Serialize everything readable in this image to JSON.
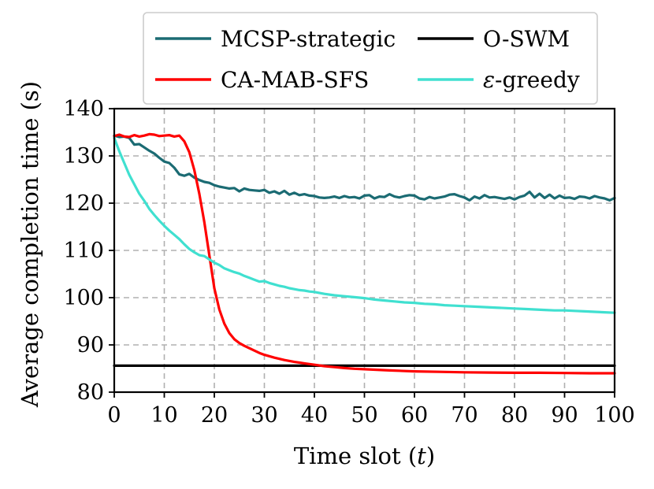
{
  "chart_data": {
    "type": "line",
    "xlabel": "Time slot (t)",
    "xlabel_main": "Time slot (",
    "xlabel_var": "t",
    "xlabel_end": ")",
    "ylabel": "Average completion time (s)",
    "xlim": [
      0,
      100
    ],
    "ylim": [
      80,
      140
    ],
    "xticks": [
      0,
      10,
      20,
      30,
      40,
      50,
      60,
      70,
      80,
      90,
      100
    ],
    "yticks": [
      80,
      90,
      100,
      110,
      120,
      130,
      140
    ],
    "grid": true,
    "legend_position": "top",
    "series": [
      {
        "name": "MCSP-strategic",
        "color": "#1b6b73",
        "x": [
          0,
          1,
          2,
          3,
          4,
          5,
          6,
          7,
          8,
          9,
          10,
          11,
          12,
          13,
          14,
          15,
          16,
          17,
          18,
          19,
          20,
          21,
          22,
          23,
          24,
          25,
          26,
          27,
          28,
          29,
          30,
          31,
          32,
          33,
          34,
          35,
          36,
          37,
          38,
          39,
          40,
          41,
          42,
          43,
          44,
          45,
          46,
          47,
          48,
          49,
          50,
          51,
          52,
          53,
          54,
          55,
          56,
          57,
          58,
          59,
          60,
          61,
          62,
          63,
          64,
          65,
          66,
          67,
          68,
          69,
          70,
          71,
          72,
          73,
          74,
          75,
          76,
          77,
          78,
          79,
          80,
          81,
          82,
          83,
          84,
          85,
          86,
          87,
          88,
          89,
          90,
          91,
          92,
          93,
          94,
          95,
          96,
          97,
          98,
          99,
          100
        ],
        "values": [
          134.3,
          134.0,
          134.1,
          133.8,
          132.4,
          132.5,
          131.8,
          131.1,
          130.5,
          129.6,
          128.8,
          128.5,
          127.5,
          126.1,
          125.8,
          126.2,
          125.4,
          124.9,
          124.5,
          124.3,
          123.8,
          123.5,
          123.3,
          123.1,
          123.2,
          122.5,
          123.1,
          122.8,
          122.7,
          122.6,
          122.8,
          122.2,
          122.5,
          122.0,
          122.6,
          121.8,
          122.2,
          121.7,
          121.9,
          121.6,
          121.5,
          121.2,
          121.1,
          121.2,
          121.4,
          121.1,
          121.5,
          121.2,
          121.3,
          121.0,
          121.6,
          121.7,
          121.0,
          121.4,
          121.3,
          121.9,
          121.4,
          121.2,
          121.5,
          121.7,
          121.6,
          121.0,
          120.8,
          121.3,
          121.0,
          121.2,
          121.4,
          121.8,
          121.9,
          121.5,
          121.2,
          120.6,
          121.4,
          121.0,
          121.7,
          121.2,
          121.3,
          121.1,
          120.9,
          121.2,
          120.8,
          121.3,
          121.6,
          122.4,
          121.2,
          122.0,
          121.1,
          121.8,
          121.0,
          121.6,
          121.1,
          121.2,
          120.9,
          121.4,
          121.3,
          121.0,
          121.5,
          121.2,
          121.0,
          120.6,
          121.1
        ]
      },
      {
        "name": "O-SWM",
        "color": "#000000",
        "x": [
          0,
          100
        ],
        "values": [
          85.6,
          85.6
        ]
      },
      {
        "name": "CA-MAB-SFS",
        "color": "#ff0000",
        "x": [
          0,
          1,
          2,
          3,
          4,
          5,
          6,
          7,
          8,
          9,
          10,
          11,
          12,
          13,
          14,
          15,
          16,
          17,
          18,
          19,
          20,
          21,
          22,
          23,
          24,
          25,
          26,
          27,
          28,
          29,
          30,
          32,
          34,
          36,
          38,
          40,
          42,
          44,
          46,
          48,
          50,
          55,
          60,
          65,
          70,
          75,
          80,
          85,
          90,
          95,
          100
        ],
        "values": [
          134.2,
          134.5,
          134.1,
          134.0,
          134.4,
          134.1,
          134.3,
          134.6,
          134.5,
          134.2,
          134.3,
          134.4,
          134.1,
          134.3,
          133.1,
          130.8,
          127.0,
          122.0,
          116.0,
          109.0,
          102.0,
          97.5,
          94.5,
          92.5,
          91.2,
          90.4,
          89.8,
          89.3,
          88.8,
          88.3,
          87.9,
          87.3,
          86.8,
          86.4,
          86.1,
          85.8,
          85.5,
          85.3,
          85.1,
          84.95,
          84.85,
          84.6,
          84.4,
          84.3,
          84.2,
          84.15,
          84.1,
          84.1,
          84.05,
          84.0,
          84.0
        ]
      },
      {
        "name": "ε-greedy",
        "name_symbol": "ε",
        "name_rest": "-greedy",
        "color": "#40e0d0",
        "x": [
          0,
          1,
          2,
          3,
          4,
          5,
          6,
          7,
          8,
          9,
          10,
          11,
          12,
          13,
          14,
          15,
          16,
          17,
          18,
          19,
          20,
          21,
          22,
          23,
          24,
          25,
          26,
          27,
          28,
          29,
          30,
          31,
          32,
          33,
          34,
          35,
          36,
          37,
          38,
          39,
          40,
          42,
          44,
          46,
          48,
          50,
          52,
          54,
          56,
          58,
          60,
          62,
          64,
          66,
          68,
          70,
          72,
          74,
          76,
          78,
          80,
          82,
          84,
          86,
          88,
          90,
          92,
          94,
          96,
          98,
          100
        ],
        "values": [
          133.8,
          131.0,
          128.5,
          126.0,
          124.0,
          122.0,
          120.5,
          118.8,
          117.5,
          116.3,
          115.2,
          114.2,
          113.3,
          112.4,
          111.3,
          110.3,
          109.6,
          109.0,
          108.8,
          108.1,
          107.4,
          106.9,
          106.2,
          105.8,
          105.4,
          105.1,
          104.6,
          104.2,
          103.8,
          103.4,
          103.5,
          103.1,
          102.8,
          102.5,
          102.3,
          102.0,
          101.8,
          101.6,
          101.5,
          101.3,
          101.2,
          100.8,
          100.5,
          100.3,
          100.1,
          99.9,
          99.6,
          99.4,
          99.2,
          99.0,
          98.9,
          98.7,
          98.6,
          98.4,
          98.3,
          98.2,
          98.1,
          98.0,
          97.9,
          97.8,
          97.7,
          97.6,
          97.5,
          97.4,
          97.3,
          97.3,
          97.2,
          97.1,
          97.0,
          96.9,
          96.8
        ]
      }
    ]
  }
}
